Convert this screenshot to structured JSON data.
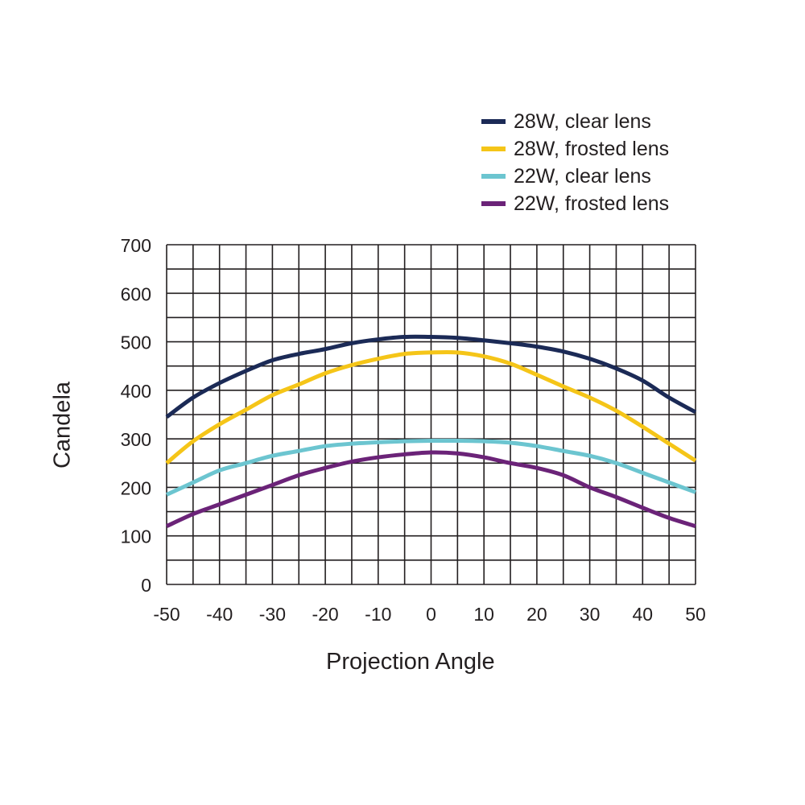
{
  "chart_data": {
    "type": "line",
    "xlabel": "Projection Angle",
    "ylabel": "Candela",
    "xlim": [
      -50,
      50
    ],
    "ylim": [
      0,
      700
    ],
    "xticks": [
      -50,
      -40,
      -30,
      -20,
      -10,
      0,
      10,
      20,
      30,
      40,
      50
    ],
    "yticks": [
      0,
      100,
      200,
      300,
      400,
      500,
      600,
      700
    ],
    "grid": true,
    "grid_x_step": 5,
    "grid_y_step": 50,
    "legend_position": "top-right",
    "series": [
      {
        "name": "28W, clear lens",
        "color": "#1b2a56",
        "x": [
          -50,
          -45,
          -40,
          -35,
          -30,
          -25,
          -20,
          -15,
          -10,
          -5,
          0,
          5,
          10,
          15,
          20,
          25,
          30,
          35,
          40,
          45,
          50
        ],
        "y": [
          345,
          385,
          415,
          440,
          462,
          475,
          485,
          497,
          505,
          510,
          510,
          508,
          503,
          497,
          490,
          480,
          465,
          445,
          420,
          385,
          355
        ]
      },
      {
        "name": "28W, frosted lens",
        "color": "#f5c518",
        "x": [
          -50,
          -45,
          -40,
          -35,
          -30,
          -25,
          -20,
          -15,
          -10,
          -5,
          0,
          5,
          10,
          15,
          20,
          25,
          30,
          35,
          40,
          45,
          50
        ],
        "y": [
          250,
          295,
          330,
          360,
          390,
          412,
          435,
          452,
          465,
          475,
          478,
          478,
          470,
          455,
          432,
          408,
          385,
          358,
          325,
          290,
          255
        ]
      },
      {
        "name": "22W, clear lens",
        "color": "#6cc5d0",
        "x": [
          -50,
          -45,
          -40,
          -35,
          -30,
          -25,
          -20,
          -15,
          -10,
          -5,
          0,
          5,
          10,
          15,
          20,
          25,
          30,
          35,
          40,
          45,
          50
        ],
        "y": [
          185,
          210,
          235,
          250,
          265,
          275,
          285,
          290,
          293,
          295,
          296,
          296,
          295,
          292,
          285,
          275,
          265,
          250,
          230,
          210,
          190
        ]
      },
      {
        "name": "22W, frosted lens",
        "color": "#6b2378",
        "x": [
          -50,
          -45,
          -40,
          -35,
          -30,
          -25,
          -20,
          -15,
          -10,
          -5,
          0,
          5,
          10,
          15,
          20,
          25,
          30,
          35,
          40,
          45,
          50
        ],
        "y": [
          120,
          145,
          165,
          185,
          205,
          225,
          240,
          253,
          262,
          268,
          272,
          270,
          262,
          250,
          240,
          225,
          200,
          180,
          158,
          137,
          120
        ]
      }
    ]
  }
}
